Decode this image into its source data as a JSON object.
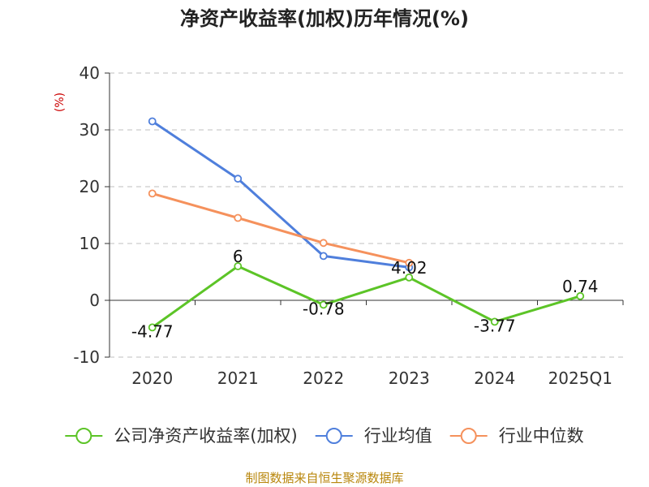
{
  "chart_data": {
    "type": "line",
    "title": "净资产收益率(加权)历年情况(%)",
    "ylabel": "(%)",
    "xlabel": "",
    "categories": [
      "2020",
      "2021",
      "2022",
      "2023",
      "2024",
      "2025Q1"
    ],
    "ylim": [
      -10,
      40
    ],
    "yticks": [
      -10,
      0,
      10,
      20,
      30,
      40
    ],
    "grid": true,
    "legend_position": "bottom",
    "series": [
      {
        "name": "公司净资产收益率(加权)",
        "color": "#5cc427",
        "values": [
          -4.77,
          6,
          -0.78,
          4.02,
          -3.77,
          0.74
        ],
        "data_labels": [
          "-4.77",
          "6",
          "-0.78",
          "4.02",
          "-3.77",
          "0.74"
        ]
      },
      {
        "name": "行业均值",
        "color": "#4f7fdc",
        "values": [
          31.5,
          21.4,
          7.8,
          5.8,
          null,
          null
        ]
      },
      {
        "name": "行业中位数",
        "color": "#f5915c",
        "values": [
          18.8,
          14.5,
          10.1,
          6.6,
          null,
          null
        ]
      }
    ]
  },
  "footer": {
    "source": "制图数据来自恒生聚源数据库"
  }
}
